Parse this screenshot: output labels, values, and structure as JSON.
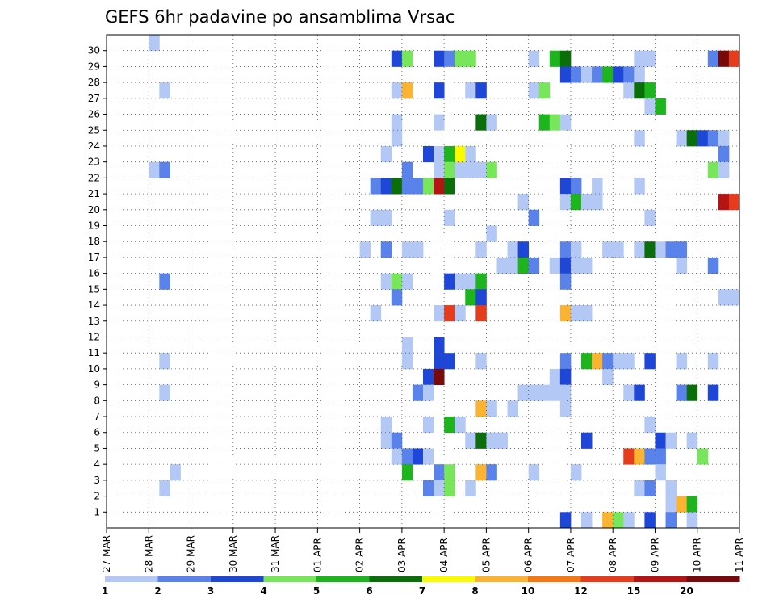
{
  "chart_data": {
    "type": "heatmap",
    "title": "GEFS 6hr padavine po ansamblima Vrsac",
    "xlabel": "",
    "ylabel": "",
    "x_tick_labels": [
      "27 MAR",
      "28 MAR",
      "29 MAR",
      "30 MAR",
      "31 MAR",
      "01 APR",
      "02 APR",
      "03 APR",
      "04 APR",
      "05 APR",
      "06 APR",
      "07 APR",
      "08 APR",
      "09 APR",
      "10 APR",
      "11 APR"
    ],
    "y_tick_labels": [
      "1",
      "2",
      "3",
      "4",
      "5",
      "6",
      "7",
      "8",
      "9",
      "10",
      "11",
      "12",
      "13",
      "14",
      "15",
      "16",
      "17",
      "18",
      "19",
      "20",
      "21",
      "22",
      "23",
      "24",
      "25",
      "26",
      "27",
      "28",
      "29",
      "30"
    ],
    "time_steps": 60,
    "members": 31,
    "grid": true,
    "legend_placement": "bottom",
    "legend": {
      "bins": [
        {
          "label": "1",
          "color": "#b4c8f5"
        },
        {
          "label": "2",
          "color": "#5a82eb"
        },
        {
          "label": "3",
          "color": "#1e46d7"
        },
        {
          "label": "4",
          "color": "#78e65a"
        },
        {
          "label": "5",
          "color": "#1eb41e"
        },
        {
          "label": "6",
          "color": "#0a6e0a"
        },
        {
          "label": "7",
          "color": "#fafa00"
        },
        {
          "label": "8",
          "color": "#fab432"
        },
        {
          "label": "10",
          "color": "#f57814"
        },
        {
          "label": "12",
          "color": "#e63c1e"
        },
        {
          "label": "15",
          "color": "#b41414"
        },
        {
          "label": "20",
          "color": "#780a0a"
        }
      ],
      "end_label": ""
    },
    "cells": [
      [
        4,
        30,
        1
      ],
      [
        27,
        29,
        3
      ],
      [
        28,
        29,
        4
      ],
      [
        31,
        29,
        3
      ],
      [
        32,
        29,
        2
      ],
      [
        33,
        29,
        4
      ],
      [
        34,
        29,
        4
      ],
      [
        40,
        29,
        1
      ],
      [
        42,
        29,
        5
      ],
      [
        43,
        29,
        6
      ],
      [
        50,
        29,
        1
      ],
      [
        51,
        29,
        1
      ],
      [
        57,
        29,
        2
      ],
      [
        58,
        29,
        12
      ],
      [
        59,
        29,
        10
      ],
      [
        43,
        28,
        3
      ],
      [
        44,
        28,
        2
      ],
      [
        45,
        28,
        1
      ],
      [
        46,
        28,
        2
      ],
      [
        47,
        28,
        5
      ],
      [
        48,
        28,
        3
      ],
      [
        49,
        28,
        2
      ],
      [
        50,
        28,
        1
      ],
      [
        5,
        27,
        1
      ],
      [
        27,
        27,
        1
      ],
      [
        28,
        27,
        8
      ],
      [
        31,
        27,
        3
      ],
      [
        34,
        27,
        1
      ],
      [
        35,
        27,
        3
      ],
      [
        40,
        27,
        1
      ],
      [
        41,
        27,
        4
      ],
      [
        49,
        27,
        1
      ],
      [
        50,
        27,
        6
      ],
      [
        51,
        27,
        5
      ],
      [
        51,
        26,
        1
      ],
      [
        52,
        26,
        5
      ],
      [
        27,
        25,
        1
      ],
      [
        31,
        25,
        1
      ],
      [
        35,
        25,
        6
      ],
      [
        36,
        25,
        1
      ],
      [
        41,
        25,
        5
      ],
      [
        42,
        25,
        4
      ],
      [
        43,
        25,
        1
      ],
      [
        27,
        24,
        1
      ],
      [
        50,
        24,
        1
      ],
      [
        54,
        24,
        1
      ],
      [
        55,
        24,
        6
      ],
      [
        56,
        24,
        3
      ],
      [
        57,
        24,
        2
      ],
      [
        58,
        24,
        1
      ],
      [
        26,
        23,
        1
      ],
      [
        30,
        23,
        3
      ],
      [
        31,
        23,
        1
      ],
      [
        32,
        23,
        5
      ],
      [
        33,
        23,
        7
      ],
      [
        34,
        23,
        1
      ],
      [
        58,
        23,
        2
      ],
      [
        4,
        22,
        1
      ],
      [
        5,
        22,
        2
      ],
      [
        28,
        22,
        2
      ],
      [
        31,
        22,
        1
      ],
      [
        32,
        22,
        4
      ],
      [
        33,
        22,
        1
      ],
      [
        34,
        22,
        1
      ],
      [
        35,
        22,
        1
      ],
      [
        36,
        22,
        4
      ],
      [
        57,
        22,
        4
      ],
      [
        58,
        22,
        1
      ],
      [
        25,
        21,
        2
      ],
      [
        26,
        21,
        3
      ],
      [
        27,
        21,
        6
      ],
      [
        28,
        21,
        2
      ],
      [
        29,
        21,
        2
      ],
      [
        30,
        21,
        4
      ],
      [
        31,
        21,
        11
      ],
      [
        32,
        21,
        6
      ],
      [
        43,
        21,
        3
      ],
      [
        44,
        21,
        2
      ],
      [
        46,
        21,
        1
      ],
      [
        50,
        21,
        1
      ],
      [
        39,
        20,
        1
      ],
      [
        43,
        20,
        1
      ],
      [
        44,
        20,
        5
      ],
      [
        45,
        20,
        1
      ],
      [
        46,
        20,
        1
      ],
      [
        58,
        20,
        11
      ],
      [
        59,
        20,
        10
      ],
      [
        25,
        19,
        1
      ],
      [
        26,
        19,
        1
      ],
      [
        32,
        19,
        1
      ],
      [
        40,
        19,
        2
      ],
      [
        51,
        19,
        1
      ],
      [
        36,
        18,
        1
      ],
      [
        24,
        17,
        1
      ],
      [
        26,
        17,
        2
      ],
      [
        28,
        17,
        1
      ],
      [
        29,
        17,
        1
      ],
      [
        35,
        17,
        1
      ],
      [
        38,
        17,
        1
      ],
      [
        39,
        17,
        3
      ],
      [
        43,
        17,
        2
      ],
      [
        44,
        17,
        1
      ],
      [
        47,
        17,
        1
      ],
      [
        48,
        17,
        1
      ],
      [
        50,
        17,
        1
      ],
      [
        51,
        17,
        6
      ],
      [
        52,
        17,
        1
      ],
      [
        53,
        17,
        2
      ],
      [
        54,
        17,
        2
      ],
      [
        37,
        16,
        1
      ],
      [
        38,
        16,
        1
      ],
      [
        39,
        16,
        5
      ],
      [
        40,
        16,
        2
      ],
      [
        42,
        16,
        1
      ],
      [
        43,
        16,
        3
      ],
      [
        44,
        16,
        1
      ],
      [
        45,
        16,
        1
      ],
      [
        54,
        16,
        1
      ],
      [
        57,
        16,
        2
      ],
      [
        5,
        15,
        2
      ],
      [
        26,
        15,
        1
      ],
      [
        27,
        15,
        4
      ],
      [
        28,
        15,
        1
      ],
      [
        32,
        15,
        3
      ],
      [
        33,
        15,
        1
      ],
      [
        34,
        15,
        1
      ],
      [
        35,
        15,
        5
      ],
      [
        43,
        15,
        2
      ],
      [
        27,
        14,
        2
      ],
      [
        34,
        14,
        5
      ],
      [
        35,
        14,
        3
      ],
      [
        58,
        14,
        1
      ],
      [
        59,
        14,
        1
      ],
      [
        25,
        13,
        1
      ],
      [
        31,
        13,
        1
      ],
      [
        32,
        13,
        10
      ],
      [
        33,
        13,
        1
      ],
      [
        35,
        13,
        10
      ],
      [
        43,
        13,
        8
      ],
      [
        44,
        13,
        1
      ],
      [
        45,
        13,
        1
      ],
      [
        28,
        11,
        1
      ],
      [
        31,
        11,
        3
      ],
      [
        5,
        10,
        1
      ],
      [
        28,
        10,
        1
      ],
      [
        31,
        10,
        3
      ],
      [
        32,
        10,
        3
      ],
      [
        35,
        10,
        1
      ],
      [
        43,
        10,
        2
      ],
      [
        45,
        10,
        5
      ],
      [
        46,
        10,
        8
      ],
      [
        47,
        10,
        2
      ],
      [
        48,
        10,
        1
      ],
      [
        49,
        10,
        1
      ],
      [
        51,
        10,
        3
      ],
      [
        54,
        10,
        1
      ],
      [
        57,
        10,
        1
      ],
      [
        30,
        9,
        3
      ],
      [
        31,
        9,
        12
      ],
      [
        42,
        9,
        1
      ],
      [
        43,
        9,
        3
      ],
      [
        47,
        9,
        1
      ],
      [
        5,
        8,
        1
      ],
      [
        29,
        8,
        2
      ],
      [
        30,
        8,
        1
      ],
      [
        39,
        8,
        1
      ],
      [
        40,
        8,
        1
      ],
      [
        41,
        8,
        1
      ],
      [
        42,
        8,
        1
      ],
      [
        43,
        8,
        1
      ],
      [
        49,
        8,
        1
      ],
      [
        50,
        8,
        3
      ],
      [
        54,
        8,
        2
      ],
      [
        55,
        8,
        6
      ],
      [
        57,
        8,
        3
      ],
      [
        35,
        7,
        8
      ],
      [
        36,
        7,
        1
      ],
      [
        38,
        7,
        1
      ],
      [
        43,
        7,
        1
      ],
      [
        26,
        6,
        1
      ],
      [
        30,
        6,
        1
      ],
      [
        32,
        6,
        5
      ],
      [
        33,
        6,
        1
      ],
      [
        51,
        6,
        1
      ],
      [
        26,
        5,
        1
      ],
      [
        27,
        5,
        2
      ],
      [
        34,
        5,
        1
      ],
      [
        35,
        5,
        6
      ],
      [
        36,
        5,
        1
      ],
      [
        37,
        5,
        1
      ],
      [
        45,
        5,
        3
      ],
      [
        52,
        5,
        3
      ],
      [
        53,
        5,
        1
      ],
      [
        55,
        5,
        1
      ],
      [
        27,
        4,
        1
      ],
      [
        28,
        4,
        2
      ],
      [
        29,
        4,
        3
      ],
      [
        30,
        4,
        1
      ],
      [
        49,
        4,
        10
      ],
      [
        50,
        4,
        8
      ],
      [
        51,
        4,
        2
      ],
      [
        52,
        4,
        2
      ],
      [
        56,
        4,
        4
      ],
      [
        6,
        3,
        1
      ],
      [
        28,
        3,
        5
      ],
      [
        31,
        3,
        2
      ],
      [
        32,
        3,
        4
      ],
      [
        35,
        3,
        8
      ],
      [
        36,
        3,
        2
      ],
      [
        40,
        3,
        1
      ],
      [
        44,
        3,
        1
      ],
      [
        52,
        3,
        1
      ],
      [
        5,
        2,
        1
      ],
      [
        30,
        2,
        2
      ],
      [
        31,
        2,
        1
      ],
      [
        32,
        2,
        4
      ],
      [
        34,
        2,
        1
      ],
      [
        50,
        2,
        1
      ],
      [
        51,
        2,
        2
      ],
      [
        53,
        2,
        1
      ],
      [
        53,
        1,
        1
      ],
      [
        54,
        1,
        8
      ],
      [
        55,
        1,
        5
      ],
      [
        43,
        0,
        3
      ],
      [
        45,
        0,
        1
      ],
      [
        47,
        0,
        8
      ],
      [
        48,
        0,
        4
      ],
      [
        49,
        0,
        1
      ],
      [
        51,
        0,
        3
      ],
      [
        53,
        0,
        2
      ],
      [
        55,
        0,
        1
      ]
    ]
  }
}
